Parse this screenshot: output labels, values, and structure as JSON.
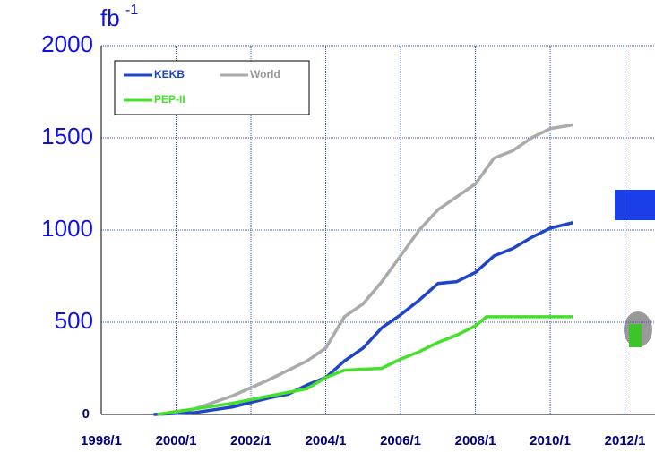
{
  "chart_data": {
    "type": "line",
    "y_unit": "fb",
    "y_unit_exponent": "-1",
    "xlim": [
      1998,
      2012.8
    ],
    "ylim": [
      0,
      2000
    ],
    "xticks": [
      {
        "value": 1998,
        "label": "1998/1"
      },
      {
        "value": 2000,
        "label": "2000/1"
      },
      {
        "value": 2002,
        "label": "2002/1"
      },
      {
        "value": 2004,
        "label": "2004/1"
      },
      {
        "value": 2006,
        "label": "2006/1"
      },
      {
        "value": 2008,
        "label": "2008/1"
      },
      {
        "value": 2010,
        "label": "2010/1"
      },
      {
        "value": 2012,
        "label": "2012/1"
      }
    ],
    "yticks": [
      0,
      500,
      1000,
      1500,
      2000
    ],
    "grid": true,
    "legend": "top-left",
    "series": [
      {
        "name": "KEKB",
        "color": "#1f44c8",
        "x": [
          1999.4,
          2000.5,
          2001.5,
          2002.5,
          2003,
          2003.5,
          2004,
          2004.5,
          2005,
          2005.5,
          2006,
          2006.5,
          2007,
          2007.5,
          2008,
          2008.5,
          2009,
          2009.5,
          2010,
          2010.6
        ],
        "values": [
          0,
          10,
          40,
          90,
          110,
          160,
          200,
          290,
          360,
          470,
          540,
          620,
          710,
          720,
          770,
          860,
          900,
          960,
          1010,
          1040
        ]
      },
      {
        "name": "World",
        "color": "#aaaaaa",
        "x": [
          1999.5,
          2000.5,
          2001.5,
          2002.5,
          2003.5,
          2004,
          2004.5,
          2005,
          2005.5,
          2006,
          2006.5,
          2007,
          2007.5,
          2008,
          2008.5,
          2009,
          2009.5,
          2010,
          2010.6
        ],
        "values": [
          0,
          30,
          100,
          190,
          290,
          360,
          530,
          600,
          720,
          860,
          1000,
          1110,
          1180,
          1250,
          1390,
          1430,
          1500,
          1550,
          1570
        ]
      },
      {
        "name": "PEP-II",
        "color": "#44e02a",
        "x": [
          1999.5,
          2000.5,
          2001.5,
          2002.5,
          2003.5,
          2004,
          2004.5,
          2005.5,
          2006,
          2006.5,
          2007,
          2007.5,
          2008,
          2008.3,
          2010.6
        ],
        "values": [
          0,
          30,
          60,
          100,
          140,
          200,
          240,
          250,
          300,
          340,
          390,
          430,
          480,
          530,
          530
        ]
      }
    ]
  }
}
